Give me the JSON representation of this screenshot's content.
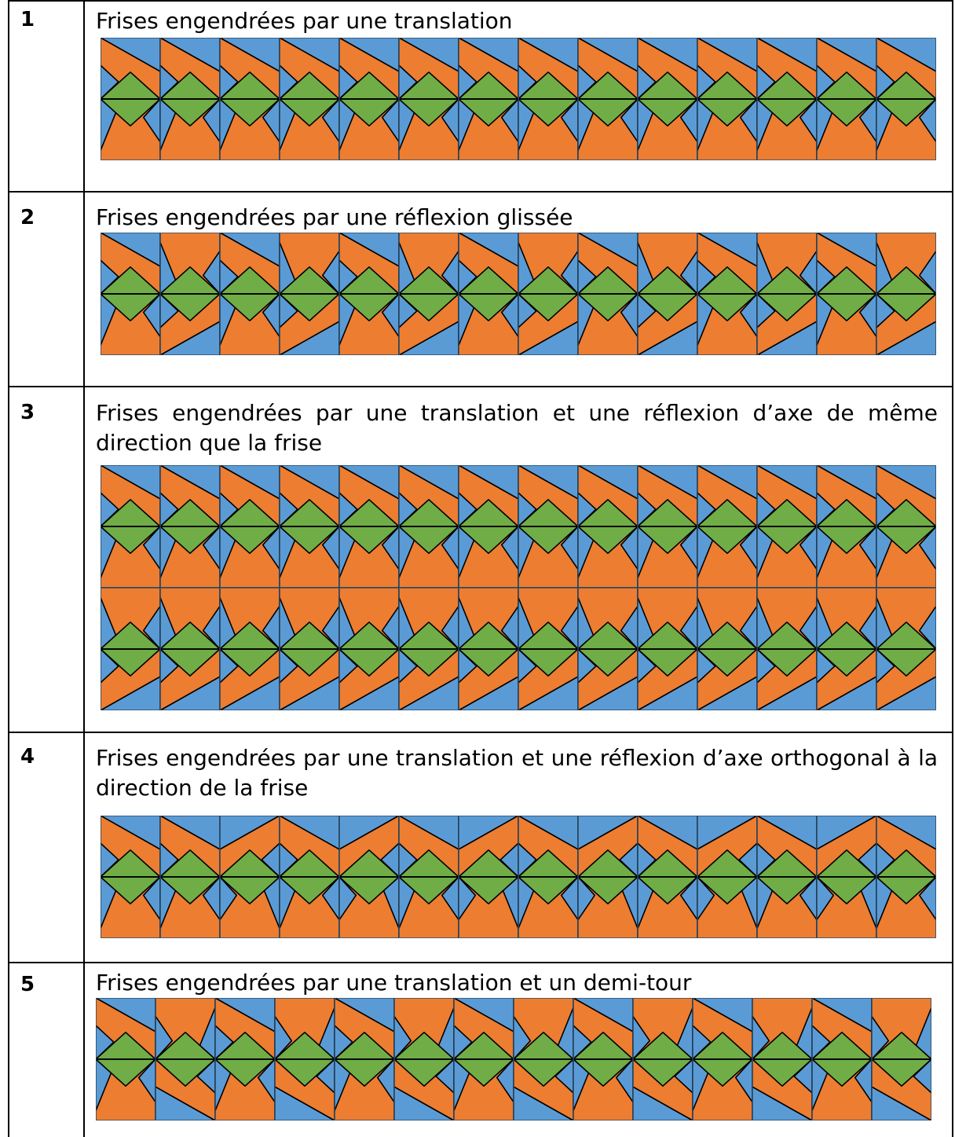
{
  "colors": {
    "orange": "#ED7D31",
    "blue": "#5B9BD5",
    "green": "#70AD47",
    "line": "#000000",
    "cellBorder": "#41719C"
  },
  "rows": [
    {
      "number": "1",
      "title": "Frises engendrées par une translation",
      "frieze": {
        "bands": [
          {
            "tiles": [
              "T",
              "T",
              "T",
              "T",
              "T",
              "T",
              "T",
              "T",
              "T",
              "T",
              "T",
              "T",
              "T",
              "T"
            ]
          }
        ]
      }
    },
    {
      "number": "2",
      "title": "Frises engendrées par une réflexion glissée",
      "frieze": {
        "bands": [
          {
            "tiles": [
              "T",
              "G",
              "T",
              "G",
              "T",
              "G",
              "T",
              "G",
              "T",
              "G",
              "T",
              "G",
              "T",
              "G"
            ]
          }
        ]
      }
    },
    {
      "number": "3",
      "title": "Frises engendrées par une translation et une réflexion d’axe de même direction que la frise",
      "frieze": {
        "bands": [
          {
            "tiles": [
              "T",
              "T",
              "T",
              "T",
              "T",
              "T",
              "T",
              "T",
              "T",
              "T",
              "T",
              "T",
              "T",
              "T"
            ]
          },
          {
            "tiles": [
              "V",
              "V",
              "V",
              "V",
              "V",
              "V",
              "V",
              "V",
              "V",
              "V",
              "V",
              "V",
              "V",
              "V"
            ]
          }
        ]
      }
    },
    {
      "number": "4",
      "title": "Frises engendrées par une translation et une réflexion d’axe orthogonal à la direction de la frise",
      "frieze": {
        "bands": [
          {
            "tiles": [
              "T",
              "T",
              "M",
              "T",
              "M",
              "T",
              "M",
              "T",
              "M",
              "T",
              "M",
              "T",
              "M",
              "T"
            ]
          }
        ]
      }
    },
    {
      "number": "5",
      "title": "Frises engendrées par une translation et un demi-tour",
      "frieze": {
        "bands": [
          {
            "tiles": [
              "T",
              "R",
              "T",
              "R",
              "T",
              "R",
              "T",
              "R",
              "T",
              "R",
              "T",
              "R",
              "T",
              "R"
            ]
          }
        ]
      }
    }
  ]
}
